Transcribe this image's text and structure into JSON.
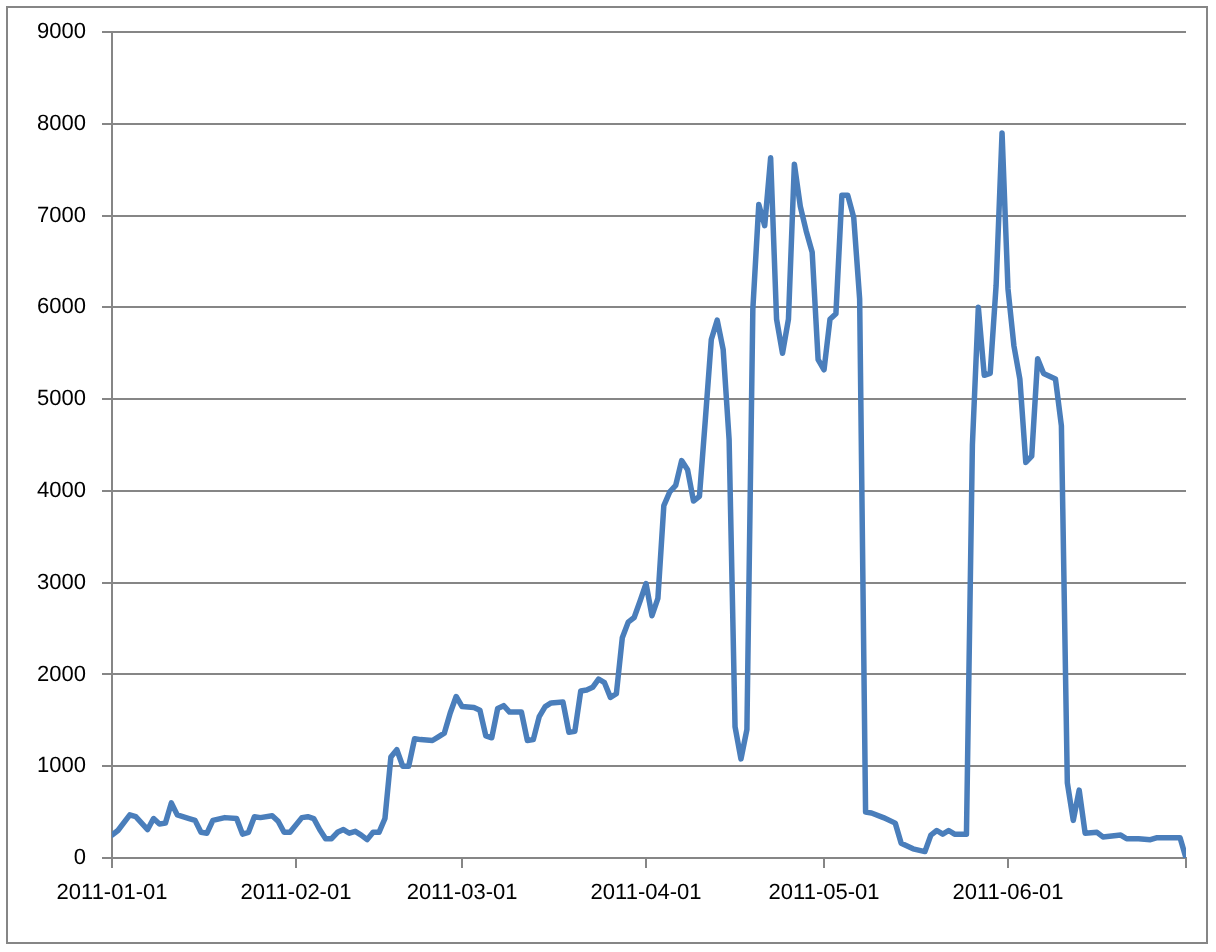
{
  "chart_data": {
    "type": "line",
    "color": "#4a7ebb",
    "grid": "y",
    "x": [
      "2011-01-01",
      "2011-01-02",
      "2011-01-04",
      "2011-01-05",
      "2011-01-07",
      "2011-01-08",
      "2011-01-09",
      "2011-01-10",
      "2011-01-11",
      "2011-01-12",
      "2011-01-14",
      "2011-01-15",
      "2011-01-16",
      "2011-01-17",
      "2011-01-18",
      "2011-01-20",
      "2011-01-22",
      "2011-01-23",
      "2011-01-24",
      "2011-01-25",
      "2011-01-26",
      "2011-01-28",
      "2011-01-29",
      "2011-01-30",
      "2011-01-31",
      "2011-02-02",
      "2011-02-03",
      "2011-02-04",
      "2011-02-05",
      "2011-02-06",
      "2011-02-07",
      "2011-02-08",
      "2011-02-09",
      "2011-02-10",
      "2011-02-11",
      "2011-02-12",
      "2011-02-13",
      "2011-02-14",
      "2011-02-15",
      "2011-02-16",
      "2011-02-17",
      "2011-02-18",
      "2011-02-19",
      "2011-02-20",
      "2011-02-21",
      "2011-02-22",
      "2011-02-24",
      "2011-02-25",
      "2011-02-26",
      "2011-02-27",
      "2011-02-28",
      "2011-03-01",
      "2011-03-03",
      "2011-03-04",
      "2011-03-05",
      "2011-03-06",
      "2011-03-07",
      "2011-03-08",
      "2011-03-09",
      "2011-03-11",
      "2011-03-12",
      "2011-03-13",
      "2011-03-14",
      "2011-03-15",
      "2011-03-16",
      "2011-03-18",
      "2011-03-19",
      "2011-03-20",
      "2011-03-21",
      "2011-03-22",
      "2011-03-23",
      "2011-03-24",
      "2011-03-25",
      "2011-03-26",
      "2011-03-27",
      "2011-03-28",
      "2011-03-29",
      "2011-03-30",
      "2011-03-31",
      "2011-04-01",
      "2011-04-02",
      "2011-04-03",
      "2011-04-04",
      "2011-04-05",
      "2011-04-06",
      "2011-04-07",
      "2011-04-08",
      "2011-04-09",
      "2011-04-10",
      "2011-04-11",
      "2011-04-12",
      "2011-04-13",
      "2011-04-14",
      "2011-04-15",
      "2011-04-16",
      "2011-04-17",
      "2011-04-18",
      "2011-04-19",
      "2011-04-20",
      "2011-04-21",
      "2011-04-22",
      "2011-04-23",
      "2011-04-24",
      "2011-04-25",
      "2011-04-26",
      "2011-04-27",
      "2011-04-28",
      "2011-04-29",
      "2011-04-30",
      "2011-05-01",
      "2011-05-02",
      "2011-05-03",
      "2011-05-04",
      "2011-05-05",
      "2011-05-06",
      "2011-05-07",
      "2011-05-08",
      "2011-05-09",
      "2011-05-11",
      "2011-05-13",
      "2011-05-14",
      "2011-05-16",
      "2011-05-18",
      "2011-05-19",
      "2011-05-20",
      "2011-05-21",
      "2011-05-22",
      "2011-05-23",
      "2011-05-25",
      "2011-05-26",
      "2011-05-27",
      "2011-05-28",
      "2011-05-29",
      "2011-05-30",
      "2011-05-31",
      "2011-06-01",
      "2011-06-02",
      "2011-06-03",
      "2011-06-04",
      "2011-06-05",
      "2011-06-06",
      "2011-06-07",
      "2011-06-09",
      "2011-06-10",
      "2011-06-11",
      "2011-06-12",
      "2011-06-13",
      "2011-06-14",
      "2011-06-16",
      "2011-06-17",
      "2011-06-20",
      "2011-06-21",
      "2011-06-23",
      "2011-06-25",
      "2011-06-26",
      "2011-06-29",
      "2011-06-30",
      "2011-07-01"
    ],
    "values": [
      250,
      300,
      470,
      450,
      310,
      430,
      370,
      380,
      600,
      470,
      430,
      410,
      280,
      270,
      410,
      440,
      430,
      260,
      280,
      450,
      440,
      460,
      400,
      280,
      280,
      440,
      450,
      430,
      310,
      210,
      210,
      280,
      310,
      270,
      290,
      250,
      200,
      280,
      280,
      430,
      1100,
      1180,
      1000,
      1000,
      1300,
      1290,
      1280,
      1320,
      1360,
      1580,
      1760,
      1650,
      1640,
      1610,
      1330,
      1310,
      1630,
      1660,
      1590,
      1590,
      1280,
      1290,
      1540,
      1650,
      1690,
      1700,
      1370,
      1380,
      1820,
      1830,
      1860,
      1950,
      1910,
      1750,
      1790,
      2400,
      2570,
      2620,
      2800,
      2990,
      2640,
      2830,
      3840,
      3990,
      4060,
      4330,
      4230,
      3890,
      3940,
      4780,
      5650,
      5860,
      5540,
      4560,
      1430,
      1080,
      1400,
      5980,
      7120,
      6890,
      7630,
      5870,
      5500,
      5870,
      7560,
      7100,
      6830,
      6600,
      5430,
      5320,
      5870,
      5930,
      7220,
      7220,
      6980,
      6090,
      500,
      490,
      440,
      380,
      160,
      100,
      70,
      250,
      300,
      260,
      300,
      260,
      260,
      4500,
      6000,
      5260,
      5280,
      6240,
      7900,
      6200,
      5580,
      5220,
      4310,
      4380,
      5440,
      5280,
      5220,
      4710,
      820,
      410,
      740,
      270,
      280,
      230,
      250,
      210,
      210,
      200,
      220,
      220,
      220,
      0
    ],
    "xlim": [
      "2011-01-01",
      "2011-07-01"
    ],
    "xticks": [
      "2011-01-01",
      "2011-02-01",
      "2011-03-01",
      "2011-04-01",
      "2011-05-01",
      "2011-06-01",
      {
        "value": "2011-07-01",
        "label": null
      }
    ],
    "ylim": [
      0,
      9000
    ],
    "yticks": [
      0,
      1000,
      2000,
      3000,
      4000,
      5000,
      6000,
      7000,
      8000,
      9000
    ]
  }
}
